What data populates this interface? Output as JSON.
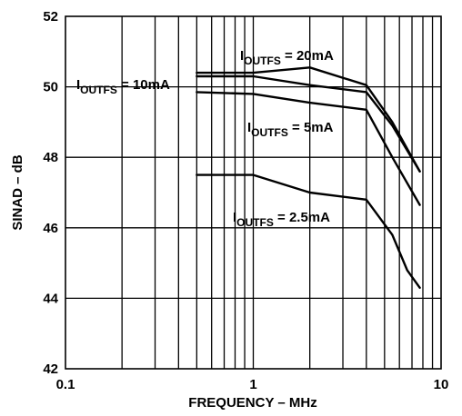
{
  "chart_data": {
    "type": "line",
    "title": "",
    "xlabel": "FREQUENCY – MHz",
    "ylabel": "SINAD – dB",
    "xscale": "log",
    "xlim": [
      0.1,
      10
    ],
    "ylim": [
      42,
      52
    ],
    "grid": true,
    "x_ticks": [
      {
        "value": 0.1,
        "label": "0.1"
      },
      {
        "value": 1,
        "label": "1"
      },
      {
        "value": 10,
        "label": "10"
      }
    ],
    "y_ticks": [
      {
        "value": 42,
        "label": "42"
      },
      {
        "value": 44,
        "label": "44"
      },
      {
        "value": 46,
        "label": "46"
      },
      {
        "value": 48,
        "label": "48"
      },
      {
        "value": 50,
        "label": "50"
      },
      {
        "value": 52,
        "label": "52"
      }
    ],
    "series": [
      {
        "name": "IOUTFS = 20mA",
        "x": [
          0.5,
          1,
          2,
          4,
          5.5,
          7.7
        ],
        "y": [
          50.4,
          50.4,
          50.55,
          50.05,
          49.0,
          47.6
        ]
      },
      {
        "name": "IOUTFS = 10mA",
        "x": [
          0.5,
          1,
          2,
          4,
          5.5,
          7.7
        ],
        "y": [
          50.3,
          50.3,
          50.05,
          49.85,
          48.9,
          47.6
        ]
      },
      {
        "name": "IOUTFS = 5mA",
        "x": [
          0.5,
          1,
          2,
          4,
          5.5,
          7.7
        ],
        "y": [
          49.85,
          49.8,
          49.55,
          49.35,
          48.0,
          46.65
        ]
      },
      {
        "name": "IOUTFS = 2.5mA",
        "x": [
          0.5,
          1,
          2,
          4,
          5.5,
          6.6,
          7.7
        ],
        "y": [
          47.5,
          47.5,
          47.0,
          46.8,
          45.8,
          44.8,
          44.3
        ]
      }
    ],
    "annotations": [
      {
        "id": "20mA",
        "main": "I",
        "sub": "OUTFS",
        "rest": " = 20mA"
      },
      {
        "id": "10mA",
        "main": "I",
        "sub": "OUTFS",
        "rest": " = 10mA"
      },
      {
        "id": "5mA",
        "main": "I",
        "sub": "OUTFS",
        "rest": " = 5mA"
      },
      {
        "id": "2_5mA",
        "main": "I",
        "sub": "OUTFS",
        "rest": " = 2.5mA"
      }
    ]
  }
}
